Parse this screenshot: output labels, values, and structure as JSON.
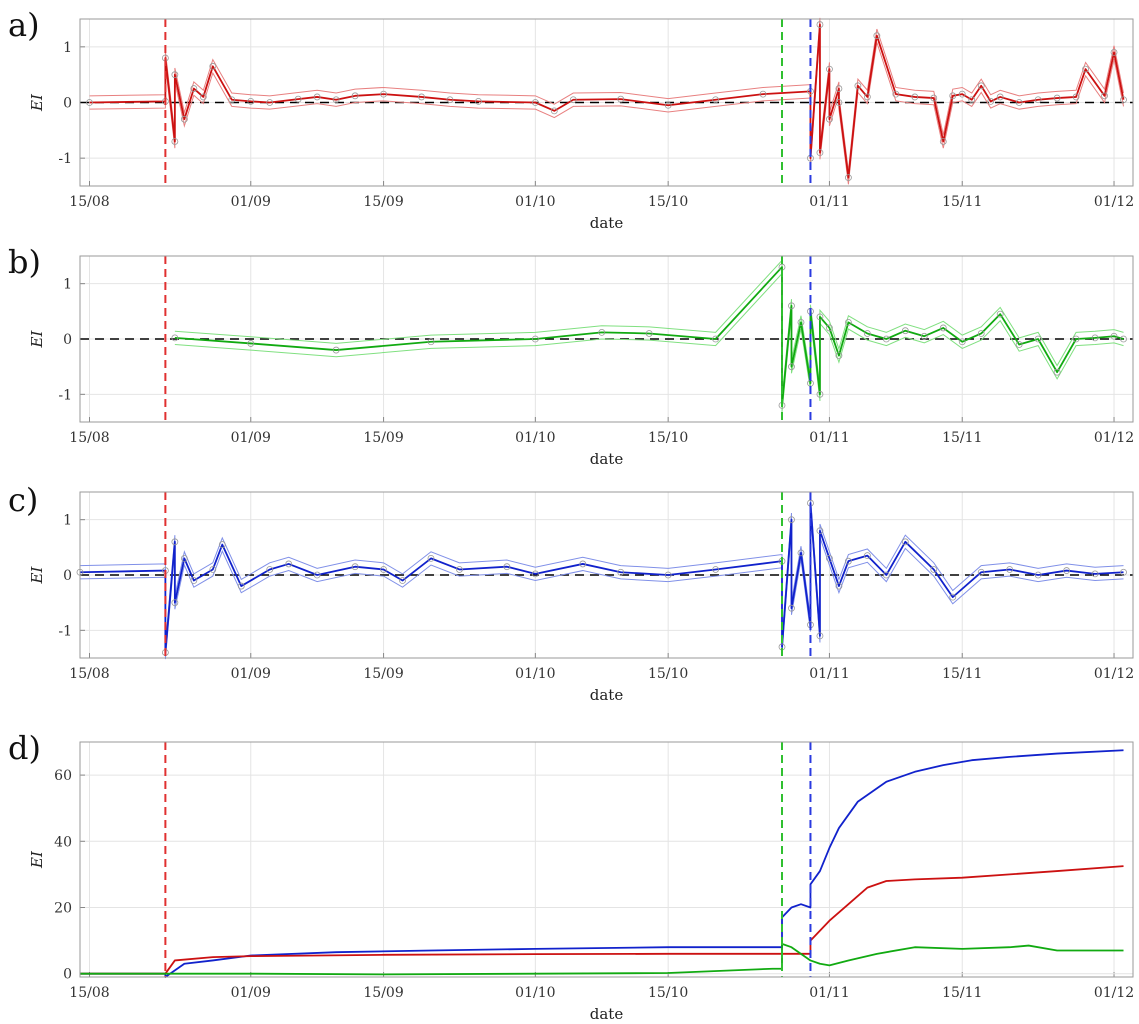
{
  "chart_data": [
    {
      "panel": "a)",
      "type": "line",
      "xlabel": "date",
      "ylabel": "EI",
      "xlim": [
        "2023-08-14",
        "2023-12-03"
      ],
      "ylim": [
        -1.5,
        1.5
      ],
      "x_tick_labels": [
        "15/08",
        "01/09",
        "15/09",
        "01/10",
        "15/10",
        "01/11",
        "15/11",
        "01/12"
      ],
      "x_tick_dates": [
        "2023-08-15",
        "2023-09-01",
        "2023-09-15",
        "2023-10-01",
        "2023-10-15",
        "2023-11-01",
        "2023-11-15",
        "2023-12-01"
      ],
      "y_ticks": [
        -1,
        0,
        1
      ],
      "grid": true,
      "reference_line_y": 0,
      "vertical_markers": [
        {
          "date": "2023-08-23",
          "color": "#e03030"
        },
        {
          "date": "2023-10-27",
          "color": "#30c030"
        },
        {
          "date": "2023-10-30",
          "color": "#2a3ae0"
        }
      ],
      "series": [
        {
          "color": "#cc1111",
          "band_color": "#e88080",
          "x": [
            "2023-08-15",
            "2023-08-23",
            "2023-08-23",
            "2023-08-24",
            "2023-08-24",
            "2023-08-25",
            "2023-08-26",
            "2023-08-27",
            "2023-08-28",
            "2023-08-30",
            "2023-09-01",
            "2023-09-03",
            "2023-09-06",
            "2023-09-08",
            "2023-09-10",
            "2023-09-12",
            "2023-09-15",
            "2023-09-19",
            "2023-09-22",
            "2023-09-25",
            "2023-10-01",
            "2023-10-03",
            "2023-10-05",
            "2023-10-10",
            "2023-10-15",
            "2023-10-20",
            "2023-10-25",
            "2023-10-30",
            "2023-10-30",
            "2023-10-31",
            "2023-10-31",
            "2023-11-01",
            "2023-11-01",
            "2023-11-02",
            "2023-11-02",
            "2023-11-03",
            "2023-11-04",
            "2023-11-05",
            "2023-11-06",
            "2023-11-08",
            "2023-11-10",
            "2023-11-12",
            "2023-11-13",
            "2023-11-14",
            "2023-11-15",
            "2023-11-16",
            "2023-11-17",
            "2023-11-18",
            "2023-11-19",
            "2023-11-21",
            "2023-11-23",
            "2023-11-25",
            "2023-11-27",
            "2023-11-28",
            "2023-11-30",
            "2023-12-01",
            "2023-12-02"
          ],
          "y": [
            0.0,
            0.02,
            0.8,
            -0.7,
            0.5,
            -0.3,
            0.25,
            0.1,
            0.65,
            0.05,
            0.02,
            0.0,
            0.06,
            0.1,
            0.05,
            0.12,
            0.15,
            0.1,
            0.05,
            0.02,
            0.0,
            -0.15,
            0.05,
            0.06,
            -0.05,
            0.05,
            0.15,
            0.2,
            -1.0,
            1.4,
            -0.9,
            0.6,
            -0.3,
            0.25,
            0.0,
            -1.35,
            0.3,
            0.1,
            1.2,
            0.15,
            0.1,
            0.08,
            -0.7,
            0.12,
            0.15,
            0.05,
            0.3,
            0.02,
            0.1,
            0.0,
            0.05,
            0.08,
            0.1,
            0.6,
            0.12,
            0.9,
            0.05
          ]
        }
      ]
    },
    {
      "panel": "b)",
      "type": "line",
      "xlabel": "date",
      "ylabel": "EI",
      "xlim": [
        "2023-08-14",
        "2023-12-03"
      ],
      "ylim": [
        -1.5,
        1.5
      ],
      "x_tick_labels": [
        "15/08",
        "01/09",
        "15/09",
        "01/10",
        "15/10",
        "01/11",
        "15/11",
        "01/12"
      ],
      "x_tick_dates": [
        "2023-08-15",
        "2023-09-01",
        "2023-09-15",
        "2023-10-01",
        "2023-10-15",
        "2023-11-01",
        "2023-11-15",
        "2023-12-01"
      ],
      "y_ticks": [
        -1,
        0,
        1
      ],
      "grid": true,
      "reference_line_y": 0,
      "vertical_markers": [
        {
          "date": "2023-08-23",
          "color": "#e03030"
        },
        {
          "date": "2023-10-27",
          "color": "#30c030"
        },
        {
          "date": "2023-10-30",
          "color": "#2a3ae0"
        }
      ],
      "series": [
        {
          "color": "#11aa11",
          "band_color": "#80e080",
          "x": [
            "2023-08-24",
            "2023-09-01",
            "2023-09-10",
            "2023-09-20",
            "2023-10-01",
            "2023-10-08",
            "2023-10-13",
            "2023-10-20",
            "2023-10-27",
            "2023-10-27",
            "2023-10-28",
            "2023-10-28",
            "2023-10-29",
            "2023-10-30",
            "2023-10-30",
            "2023-10-31",
            "2023-10-31",
            "2023-11-01",
            "2023-11-02",
            "2023-11-03",
            "2023-11-05",
            "2023-11-07",
            "2023-11-09",
            "2023-11-11",
            "2023-11-13",
            "2023-11-15",
            "2023-11-17",
            "2023-11-19",
            "2023-11-21",
            "2023-11-23",
            "2023-11-25",
            "2023-11-27",
            "2023-11-29",
            "2023-12-01",
            "2023-12-02"
          ],
          "y": [
            0.02,
            -0.08,
            -0.2,
            -0.05,
            0.0,
            0.12,
            0.1,
            0.0,
            1.3,
            -1.2,
            0.6,
            -0.5,
            0.3,
            -0.8,
            0.5,
            -1.0,
            0.4,
            0.2,
            -0.3,
            0.3,
            0.1,
            0.0,
            0.15,
            0.05,
            0.2,
            -0.05,
            0.1,
            0.45,
            -0.1,
            0.0,
            -0.6,
            0.0,
            0.02,
            0.05,
            0.0
          ]
        }
      ]
    },
    {
      "panel": "c)",
      "type": "line",
      "xlabel": "date",
      "ylabel": "EI",
      "xlim": [
        "2023-08-14",
        "2023-12-03"
      ],
      "ylim": [
        -1.5,
        1.5
      ],
      "x_tick_labels": [
        "15/08",
        "01/09",
        "15/09",
        "01/10",
        "15/10",
        "01/11",
        "15/11",
        "01/12"
      ],
      "x_tick_dates": [
        "2023-08-15",
        "2023-09-01",
        "2023-09-15",
        "2023-10-01",
        "2023-10-15",
        "2023-11-01",
        "2023-11-15",
        "2023-12-01"
      ],
      "y_ticks": [
        -1,
        0,
        1
      ],
      "grid": true,
      "reference_line_y": 0,
      "vertical_markers": [
        {
          "date": "2023-08-23",
          "color": "#e03030"
        },
        {
          "date": "2023-10-27",
          "color": "#30c030"
        },
        {
          "date": "2023-10-30",
          "color": "#2a3ae0"
        }
      ],
      "series": [
        {
          "color": "#1122cc",
          "band_color": "#8090e8",
          "x": [
            "2023-08-14",
            "2023-08-23",
            "2023-08-23",
            "2023-08-24",
            "2023-08-24",
            "2023-08-25",
            "2023-08-26",
            "2023-08-28",
            "2023-08-29",
            "2023-08-31",
            "2023-09-03",
            "2023-09-05",
            "2023-09-08",
            "2023-09-12",
            "2023-09-15",
            "2023-09-17",
            "2023-09-20",
            "2023-09-23",
            "2023-09-28",
            "2023-10-01",
            "2023-10-06",
            "2023-10-10",
            "2023-10-15",
            "2023-10-20",
            "2023-10-27",
            "2023-10-27",
            "2023-10-28",
            "2023-10-28",
            "2023-10-29",
            "2023-10-30",
            "2023-10-30",
            "2023-10-31",
            "2023-10-31",
            "2023-11-01",
            "2023-11-02",
            "2023-11-03",
            "2023-11-05",
            "2023-11-07",
            "2023-11-09",
            "2023-11-12",
            "2023-11-14",
            "2023-11-17",
            "2023-11-20",
            "2023-11-23",
            "2023-11-26",
            "2023-11-29",
            "2023-12-02"
          ],
          "y": [
            0.05,
            0.08,
            -1.4,
            0.6,
            -0.5,
            0.3,
            -0.1,
            0.1,
            0.55,
            -0.2,
            0.1,
            0.2,
            0.0,
            0.15,
            0.1,
            -0.1,
            0.3,
            0.1,
            0.15,
            0.02,
            0.2,
            0.05,
            0.0,
            0.1,
            0.25,
            -1.3,
            1.0,
            -0.6,
            0.4,
            -0.9,
            1.3,
            -1.1,
            0.8,
            0.3,
            -0.2,
            0.25,
            0.35,
            0.0,
            0.6,
            0.1,
            -0.4,
            0.05,
            0.1,
            0.0,
            0.08,
            0.02,
            0.05
          ]
        }
      ]
    },
    {
      "panel": "d)",
      "type": "line",
      "xlabel": "date",
      "ylabel": "EI",
      "xlim": [
        "2023-08-14",
        "2023-12-03"
      ],
      "ylim": [
        -1,
        70
      ],
      "x_tick_labels": [
        "15/08",
        "01/09",
        "15/09",
        "01/10",
        "15/10",
        "01/11",
        "15/11",
        "01/12"
      ],
      "x_tick_dates": [
        "2023-08-15",
        "2023-09-01",
        "2023-09-15",
        "2023-10-01",
        "2023-10-15",
        "2023-11-01",
        "2023-11-15",
        "2023-12-01"
      ],
      "y_ticks": [
        0,
        20,
        40,
        60
      ],
      "grid": true,
      "vertical_markers": [
        {
          "date": "2023-08-23",
          "color": "#e03030"
        },
        {
          "date": "2023-10-27",
          "color": "#30c030"
        },
        {
          "date": "2023-10-30",
          "color": "#2a3ae0"
        }
      ],
      "series": [
        {
          "color": "#1122cc",
          "x": [
            "2023-08-14",
            "2023-08-23",
            "2023-08-23",
            "2023-08-25",
            "2023-08-28",
            "2023-09-01",
            "2023-09-10",
            "2023-09-20",
            "2023-10-01",
            "2023-10-15",
            "2023-10-27",
            "2023-10-27",
            "2023-10-28",
            "2023-10-29",
            "2023-10-30",
            "2023-10-30",
            "2023-10-31",
            "2023-11-01",
            "2023-11-02",
            "2023-11-04",
            "2023-11-07",
            "2023-11-10",
            "2023-11-13",
            "2023-11-16",
            "2023-11-20",
            "2023-11-25",
            "2023-12-02"
          ],
          "y": [
            0,
            0,
            -1,
            3,
            4,
            5.5,
            6.5,
            7,
            7.5,
            8,
            8,
            17,
            20,
            21,
            20,
            27,
            31,
            38,
            44,
            52,
            58,
            61,
            63,
            64.5,
            65.5,
            66.5,
            67.5
          ]
        },
        {
          "color": "#cc1111",
          "x": [
            "2023-08-14",
            "2023-08-23",
            "2023-08-24",
            "2023-08-28",
            "2023-09-01",
            "2023-09-15",
            "2023-10-01",
            "2023-10-15",
            "2023-10-30",
            "2023-10-30",
            "2023-11-01",
            "2023-11-03",
            "2023-11-05",
            "2023-11-07",
            "2023-11-10",
            "2023-11-15",
            "2023-11-20",
            "2023-11-25",
            "2023-12-02"
          ],
          "y": [
            0,
            0,
            4,
            5,
            5.3,
            5.7,
            5.9,
            6,
            6,
            10,
            16,
            21,
            26,
            28,
            28.5,
            29,
            30,
            31,
            32.5
          ]
        },
        {
          "color": "#11aa11",
          "x": [
            "2023-08-14",
            "2023-09-01",
            "2023-09-15",
            "2023-10-01",
            "2023-10-15",
            "2023-10-26",
            "2023-10-27",
            "2023-10-27",
            "2023-10-28",
            "2023-10-29",
            "2023-10-30",
            "2023-10-31",
            "2023-11-01",
            "2023-11-03",
            "2023-11-06",
            "2023-11-10",
            "2023-11-15",
            "2023-11-20",
            "2023-11-22",
            "2023-11-25",
            "2023-12-02"
          ],
          "y": [
            0,
            0,
            -0.2,
            0,
            0.2,
            1.5,
            1.5,
            9,
            8,
            6,
            4,
            3,
            2.5,
            4,
            6,
            8,
            7.5,
            8,
            8.5,
            7,
            7
          ]
        }
      ]
    }
  ]
}
